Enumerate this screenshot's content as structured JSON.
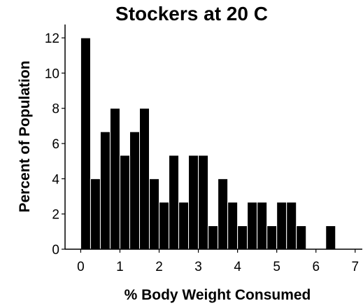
{
  "chart_data": {
    "type": "bar",
    "title": "Stockers at 20 C",
    "xlabel": "% Body Weight Consumed",
    "ylabel": "Percent of Population",
    "xlim": [
      -0.4,
      7.2
    ],
    "ylim": [
      0,
      12.6
    ],
    "xticks": [
      0,
      1,
      2,
      3,
      4,
      5,
      6,
      7
    ],
    "yticks": [
      0,
      2,
      4,
      6,
      8,
      10,
      12
    ],
    "bin_width": 0.25,
    "bins": [
      {
        "start": 0.0,
        "value": 12.0
      },
      {
        "start": 0.25,
        "value": 4.0
      },
      {
        "start": 0.5,
        "value": 6.67
      },
      {
        "start": 0.75,
        "value": 8.0
      },
      {
        "start": 1.0,
        "value": 5.33
      },
      {
        "start": 1.25,
        "value": 6.67
      },
      {
        "start": 1.5,
        "value": 8.0
      },
      {
        "start": 1.75,
        "value": 4.0
      },
      {
        "start": 2.0,
        "value": 2.67
      },
      {
        "start": 2.25,
        "value": 5.33
      },
      {
        "start": 2.5,
        "value": 2.67
      },
      {
        "start": 2.75,
        "value": 5.33
      },
      {
        "start": 3.0,
        "value": 5.33
      },
      {
        "start": 3.25,
        "value": 1.33
      },
      {
        "start": 3.5,
        "value": 4.0
      },
      {
        "start": 3.75,
        "value": 2.67
      },
      {
        "start": 4.0,
        "value": 1.33
      },
      {
        "start": 4.25,
        "value": 2.67
      },
      {
        "start": 4.5,
        "value": 2.67
      },
      {
        "start": 4.75,
        "value": 1.33
      },
      {
        "start": 5.0,
        "value": 2.67
      },
      {
        "start": 5.25,
        "value": 2.67
      },
      {
        "start": 5.5,
        "value": 1.33
      },
      {
        "start": 5.75,
        "value": 0
      },
      {
        "start": 6.0,
        "value": 0
      },
      {
        "start": 6.25,
        "value": 1.33
      }
    ],
    "bar_color": "#000000",
    "grid": false
  }
}
